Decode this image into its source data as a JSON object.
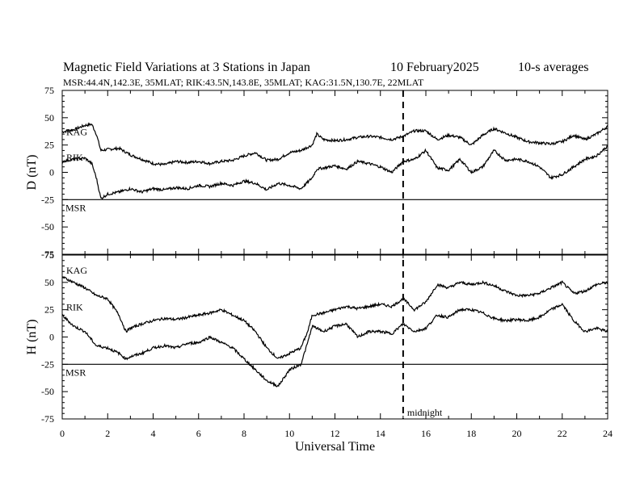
{
  "header": {
    "title": "Magnetic Field Variations at 3 Stations in Japan",
    "date": "10 February2025",
    "averaging": "10-s averages",
    "stations_line": "MSR:44.4N,142.3E, 35MLAT;  RIK:43.5N,143.8E, 35MLAT;  KAG:31.5N,130.7E, 22MLAT"
  },
  "chart_data": [
    {
      "type": "line",
      "ylabel": "D (nT)",
      "xlim": [
        0,
        24
      ],
      "ylim": [
        -75,
        75
      ],
      "yticks": [
        -75,
        -50,
        -25,
        0,
        25,
        50,
        75
      ],
      "ytick_labels": [
        "-75",
        "-50",
        "-25",
        "0",
        "25",
        "50",
        "75"
      ],
      "series": [
        {
          "name": "KAG",
          "x": [
            0,
            0.5,
            1.0,
            1.3,
            1.5,
            1.7,
            2.0,
            2.5,
            3.0,
            3.5,
            4.0,
            4.5,
            5.0,
            5.5,
            6.0,
            6.5,
            7.0,
            7.5,
            8.0,
            8.5,
            9.0,
            9.5,
            10.0,
            10.5,
            11.0,
            11.2,
            11.5,
            12.0,
            12.5,
            13.0,
            13.5,
            14.0,
            14.5,
            15.0,
            15.5,
            16.0,
            16.5,
            17.0,
            17.5,
            18.0,
            18.5,
            19.0,
            19.5,
            20.0,
            20.5,
            21.0,
            21.5,
            22.0,
            22.5,
            23.0,
            23.5,
            24.0
          ],
          "values": [
            37,
            39,
            43,
            44,
            35,
            20,
            21,
            22,
            16,
            12,
            8,
            7,
            10,
            9,
            10,
            8,
            10,
            11,
            15,
            18,
            11,
            12,
            18,
            20,
            25,
            35,
            30,
            29,
            30,
            32,
            33,
            32,
            30,
            33,
            38,
            38,
            30,
            34,
            32,
            25,
            34,
            40,
            36,
            32,
            28,
            27,
            26,
            28,
            34,
            30,
            35,
            42
          ]
        },
        {
          "name": "RIK",
          "x": [
            0,
            0.5,
            1.0,
            1.3,
            1.5,
            1.7,
            2.0,
            2.5,
            3.0,
            3.5,
            4.0,
            4.5,
            5.0,
            5.5,
            6.0,
            6.5,
            7.0,
            7.5,
            8.0,
            8.5,
            9.0,
            9.5,
            10.0,
            10.5,
            11.0,
            11.2,
            11.5,
            12.0,
            12.5,
            13.0,
            13.5,
            14.0,
            14.5,
            15.0,
            15.5,
            16.0,
            16.5,
            17.0,
            17.5,
            18.0,
            18.5,
            19.0,
            19.5,
            20.0,
            20.5,
            21.0,
            21.5,
            22.0,
            22.5,
            23.0,
            23.5,
            24.0
          ],
          "values": [
            10,
            12,
            13,
            8,
            -5,
            -24,
            -20,
            -18,
            -15,
            -18,
            -15,
            -16,
            -14,
            -15,
            -12,
            -13,
            -10,
            -12,
            -8,
            -10,
            -16,
            -10,
            -12,
            -15,
            -5,
            3,
            4,
            6,
            3,
            10,
            8,
            5,
            0,
            10,
            12,
            20,
            4,
            2,
            12,
            0,
            5,
            20,
            11,
            12,
            10,
            5,
            -5,
            -2,
            5,
            12,
            15,
            24
          ]
        }
      ],
      "baseline": {
        "label": "MSR",
        "value": -25
      }
    },
    {
      "type": "line",
      "ylabel": "H (nT)",
      "xlabel": "Universal Time",
      "xlim": [
        0,
        24
      ],
      "ylim": [
        -75,
        75
      ],
      "xticks": [
        0,
        2,
        4,
        6,
        8,
        10,
        12,
        14,
        16,
        18,
        20,
        22,
        24
      ],
      "xtick_labels": [
        "0",
        "2",
        "4",
        "6",
        "8",
        "10",
        "12",
        "14",
        "16",
        "18",
        "20",
        "22",
        "24"
      ],
      "yticks": [
        -75,
        -50,
        -25,
        0,
        25,
        50,
        75
      ],
      "ytick_labels": [
        "-75",
        "-50",
        "-25",
        "0",
        "25",
        "50",
        "75"
      ],
      "series": [
        {
          "name": "KAG",
          "x": [
            0,
            0.5,
            1.0,
            1.5,
            2.0,
            2.5,
            2.8,
            3.0,
            3.5,
            4.0,
            4.5,
            5.0,
            5.5,
            6.0,
            6.5,
            7.0,
            7.5,
            8.0,
            8.5,
            9.0,
            9.5,
            10.0,
            10.5,
            10.8,
            11.0,
            11.5,
            12.0,
            12.5,
            13.0,
            13.5,
            14.0,
            14.5,
            15.0,
            15.5,
            16.0,
            16.5,
            17.0,
            17.5,
            18.0,
            18.5,
            19.0,
            19.5,
            20.0,
            20.5,
            21.0,
            21.5,
            22.0,
            22.5,
            23.0,
            23.5,
            24.0
          ],
          "values": [
            55,
            50,
            45,
            38,
            35,
            20,
            5,
            8,
            12,
            15,
            17,
            16,
            18,
            20,
            22,
            25,
            20,
            15,
            5,
            -10,
            -20,
            -15,
            -10,
            5,
            20,
            22,
            25,
            28,
            26,
            28,
            30,
            28,
            35,
            25,
            32,
            48,
            45,
            50,
            48,
            50,
            47,
            42,
            38,
            38,
            40,
            45,
            50,
            40,
            42,
            48,
            50
          ]
        },
        {
          "name": "RIK",
          "x": [
            0,
            0.5,
            1.0,
            1.5,
            2.0,
            2.5,
            2.8,
            3.0,
            3.5,
            4.0,
            4.5,
            5.0,
            5.5,
            6.0,
            6.5,
            7.0,
            7.5,
            8.0,
            8.5,
            9.0,
            9.5,
            10.0,
            10.5,
            10.8,
            11.0,
            11.5,
            12.0,
            12.5,
            13.0,
            13.5,
            14.0,
            14.5,
            15.0,
            15.5,
            16.0,
            16.5,
            17.0,
            17.5,
            18.0,
            18.5,
            19.0,
            19.5,
            20.0,
            20.5,
            21.0,
            21.5,
            22.0,
            22.5,
            23.0,
            23.5,
            24.0
          ],
          "values": [
            20,
            10,
            5,
            -8,
            -10,
            -15,
            -20,
            -18,
            -15,
            -10,
            -8,
            -10,
            -6,
            -5,
            0,
            -5,
            -10,
            -20,
            -30,
            -40,
            -45,
            -30,
            -25,
            -5,
            10,
            5,
            10,
            12,
            0,
            5,
            5,
            3,
            12,
            5,
            8,
            20,
            18,
            25,
            25,
            22,
            17,
            15,
            16,
            15,
            18,
            25,
            30,
            15,
            5,
            8,
            5
          ]
        }
      ],
      "baseline": {
        "label": "MSR",
        "value": -25
      },
      "annotation": {
        "label": "midnight",
        "x": 15
      }
    }
  ]
}
